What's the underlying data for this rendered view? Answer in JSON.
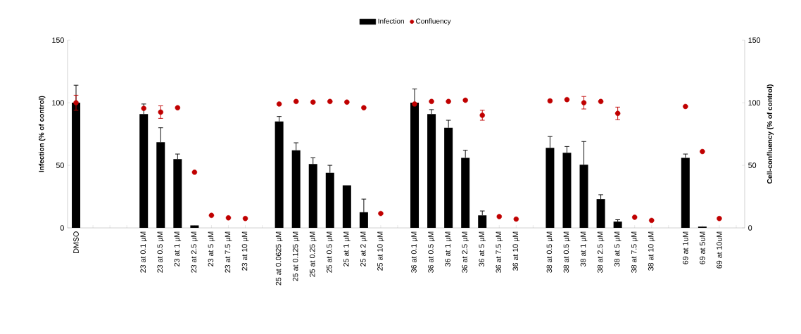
{
  "chart_data": {
    "type": "bar",
    "ylabel": "Infection (% of control)",
    "y2label": "Cell-confluency (% of control)",
    "categories": [
      "DMSO",
      null,
      null,
      null,
      "23 at 0.1 µM",
      "23 at 0.5 µM",
      "23 at 1 µM",
      "23 at 2.5 µM",
      "23 at 5 µM",
      "23 at 7.5 µM",
      "23 at 10 µM",
      null,
      "25 at 0.0625 µM",
      "25 at 0.125 µM",
      "25 at 0.25 µM",
      "25 at 0.5 µM",
      "25 at 1 µM",
      "25 at 2 µM",
      "25 at 10 µM",
      null,
      "36 at 0.1 µM",
      "36 at 0.5 µM",
      "36 at 1 µM",
      "36 at 2.5 µM",
      "36 at 5 µM",
      "36 at 7.5 µM",
      "36 at 10 µM",
      null,
      "38 at 0.5 µM",
      "38 at 0.5 µM",
      "38 at 1 µM",
      "38 at 2.5 µM",
      "38 at 5 µM",
      "38 at 7.5 µM",
      "38 at 10 µM",
      null,
      "69  at 1uM",
      "69  at 5uM",
      "69 at 10uM",
      null
    ],
    "series": [
      {
        "name": "Infection",
        "color": "#000000",
        "values": [
          100,
          null,
          null,
          null,
          91,
          68.5,
          55,
          2,
          0,
          0,
          0,
          null,
          85,
          62,
          51,
          44,
          34,
          12.5,
          0,
          null,
          100,
          91,
          80,
          56,
          10,
          0,
          0,
          null,
          64,
          60,
          50.5,
          23,
          5,
          0,
          0,
          null,
          56,
          1,
          0,
          null
        ],
        "errors": [
          [
            100,
            114
          ],
          null,
          null,
          null,
          [
            91,
            99
          ],
          [
            68.5,
            80
          ],
          [
            55,
            59
          ],
          null,
          null,
          null,
          null,
          null,
          [
            85,
            89
          ],
          [
            62,
            68
          ],
          [
            51,
            56
          ],
          [
            44,
            50
          ],
          null,
          [
            12.5,
            23
          ],
          null,
          null,
          [
            100,
            111
          ],
          [
            91,
            94.5
          ],
          [
            80,
            86
          ],
          [
            56,
            62
          ],
          [
            10,
            13.5
          ],
          null,
          null,
          null,
          [
            64,
            73
          ],
          [
            60,
            65
          ],
          [
            50.5,
            69
          ],
          [
            23,
            26.5
          ],
          [
            5,
            6.5
          ],
          null,
          null,
          null,
          [
            56,
            59
          ],
          null,
          null,
          null
        ]
      },
      {
        "name": "Confluency",
        "type": "scatter",
        "axis": "y2",
        "color": "#c00000",
        "values": [
          100,
          null,
          null,
          null,
          95.5,
          92.5,
          96,
          44.5,
          10,
          8,
          7.5,
          null,
          99,
          101,
          100.5,
          101,
          100.5,
          96,
          11.5,
          null,
          99,
          101,
          101,
          102,
          90,
          9,
          7,
          null,
          101.5,
          102.5,
          100,
          101,
          91.5,
          8.5,
          6,
          null,
          97,
          61,
          7.5,
          null
        ],
        "errors": [
          6,
          null,
          null,
          null,
          null,
          5,
          null,
          null,
          null,
          null,
          null,
          null,
          null,
          null,
          null,
          null,
          null,
          null,
          null,
          null,
          null,
          null,
          null,
          null,
          4,
          null,
          null,
          null,
          null,
          null,
          5,
          null,
          5,
          null,
          null,
          null,
          null,
          null,
          null,
          null
        ]
      }
    ],
    "ylim": [
      0,
      150
    ],
    "yticks": [
      0,
      50,
      100,
      150
    ],
    "y2lim": [
      0,
      150
    ],
    "y2ticks": [
      0,
      50,
      100,
      150
    ],
    "legend": "top"
  }
}
